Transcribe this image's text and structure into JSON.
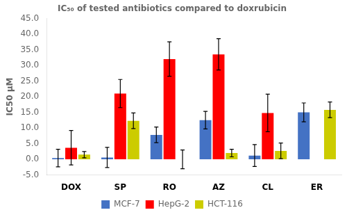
{
  "chart_data": {
    "type": "bar",
    "title": "IC₅₀ of tested antibiotics compared to doxrubicin",
    "ylabel": "IC50 μM",
    "categories": [
      "DOX",
      "SP",
      "RO",
      "AZ",
      "CL",
      "ER"
    ],
    "series": [
      {
        "name": "MCF-7",
        "color": "#4472C4",
        "values": [
          0.4,
          0.6,
          7.8,
          12.5,
          1.2,
          15.0
        ],
        "errors": [
          2.8,
          3.2,
          2.5,
          2.8,
          3.5,
          3.0
        ]
      },
      {
        "name": "HepG-2",
        "color": "#FF0000",
        "values": [
          3.7,
          21.0,
          32.0,
          33.5,
          14.8,
          0.0
        ],
        "errors": [
          5.5,
          4.5,
          5.5,
          5.0,
          6.0,
          0.0
        ]
      },
      {
        "name": "HCT-116",
        "color": "#CCCC00",
        "values": [
          1.5,
          12.3,
          0.0,
          2.0,
          2.7,
          15.8
        ],
        "errors": [
          1.0,
          2.5,
          3.0,
          1.2,
          2.5,
          2.5
        ]
      }
    ],
    "ylim": [
      -5.0,
      45.0
    ],
    "yticks": [
      {
        "value": -5,
        "label": "-5.0"
      },
      {
        "value": 0,
        "label": "0.0"
      },
      {
        "value": 5,
        "label": "5.0"
      },
      {
        "value": 10,
        "label": "10.0"
      },
      {
        "value": 15,
        "label": "15.0"
      },
      {
        "value": 20,
        "label": "20.0"
      },
      {
        "value": 25,
        "label": "25.0"
      },
      {
        "value": 30,
        "label": "30.0"
      },
      {
        "value": 35,
        "label": "35.0"
      },
      {
        "value": 40,
        "label": "40.0"
      },
      {
        "value": 45,
        "label": "45.0"
      }
    ],
    "grid": false,
    "legend": "bottom"
  }
}
